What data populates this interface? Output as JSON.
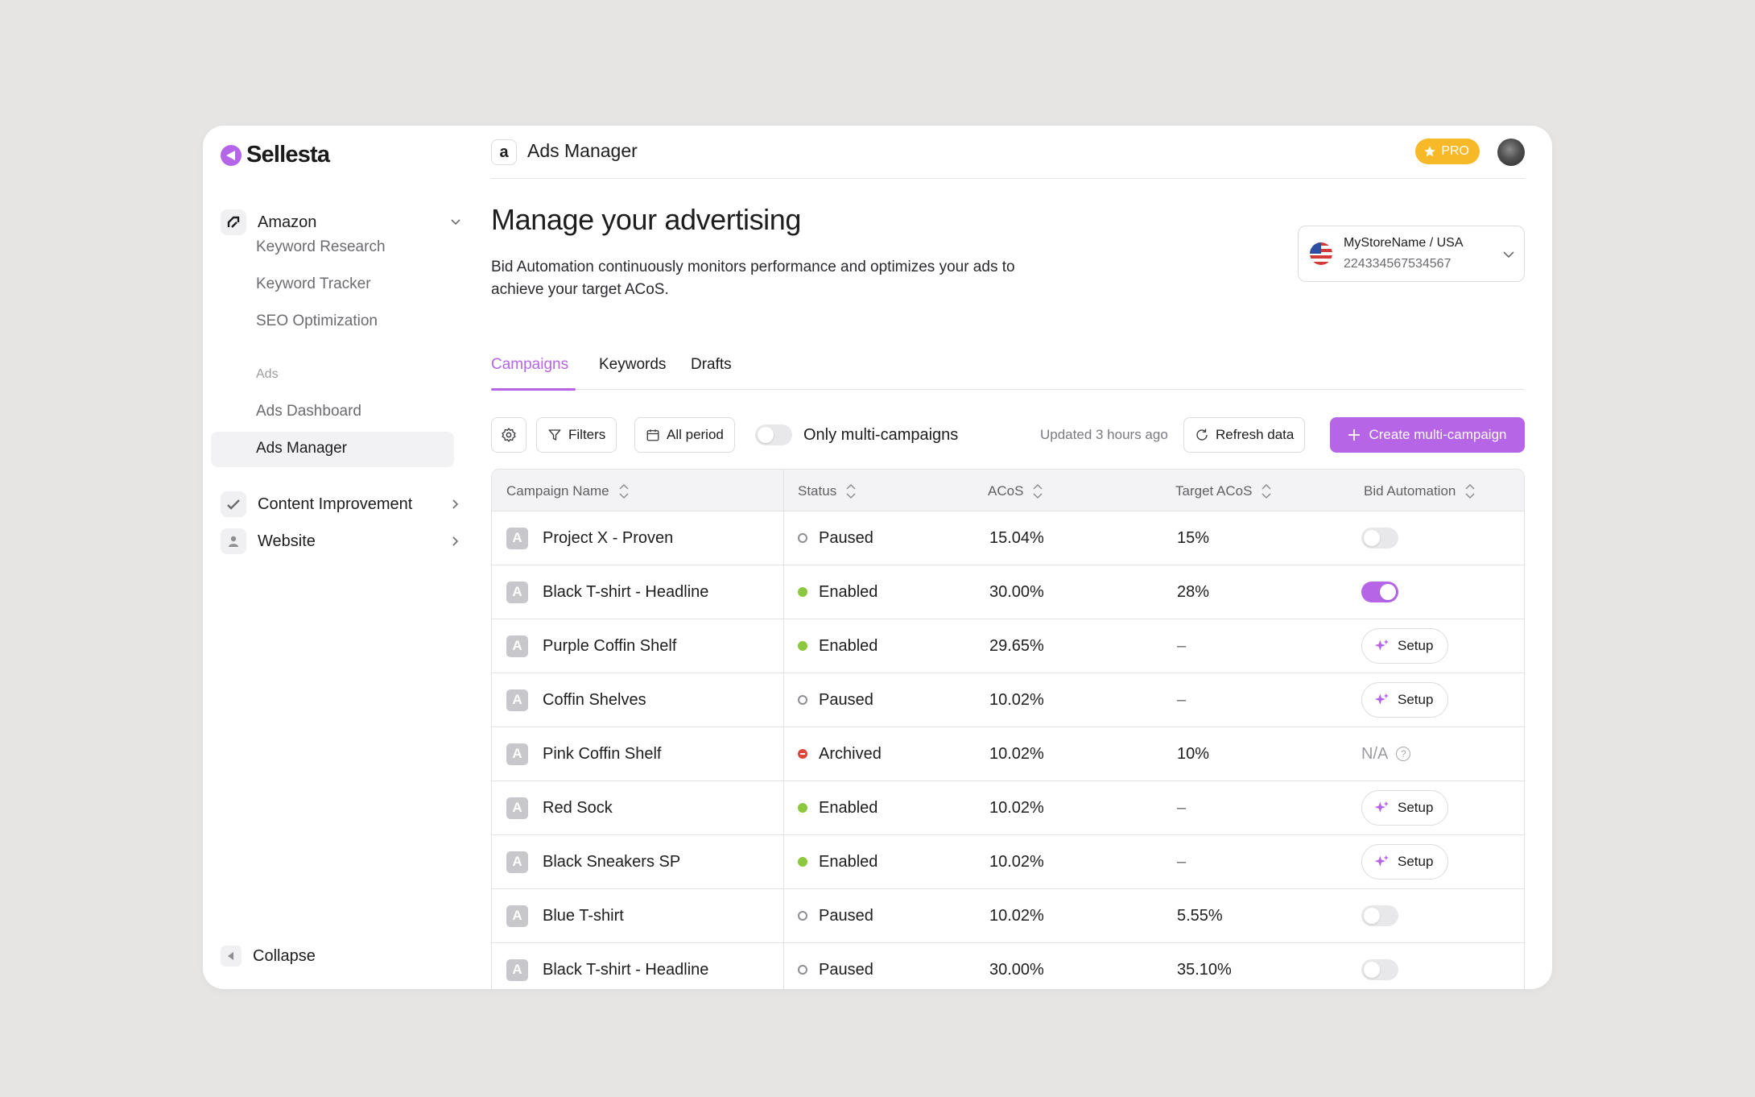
{
  "brand": {
    "name": "Sellesta"
  },
  "sidebar": {
    "groups": [
      {
        "label": "Amazon",
        "items": [
          "Keyword Research",
          "Keyword Tracker",
          "SEO Optimization"
        ]
      },
      {
        "section": "Ads",
        "items": [
          "Ads Dashboard",
          "Ads Manager"
        ]
      },
      {
        "label": "Content Improvement"
      },
      {
        "label": "Website"
      }
    ],
    "collapse_label": "Collapse"
  },
  "header": {
    "title": "Ads Manager",
    "pro_label": "PRO",
    "amazon_glyph": "a"
  },
  "page": {
    "title": "Manage your advertising",
    "description": "Bid Automation continuously monitors performance and optimizes your ads to achieve your target ACoS."
  },
  "store": {
    "name": "MyStoreName",
    "region": "/ USA",
    "id": "224334567534567"
  },
  "tabs": [
    "Campaigns",
    "Keywords",
    "Drafts"
  ],
  "toolbar": {
    "filters_label": "Filters",
    "period_label": "All period",
    "toggle_label": "Only multi-campaigns",
    "updated_text": "Updated 3 hours ago",
    "refresh_label": "Refresh data",
    "create_label": "Create multi-campaign"
  },
  "table": {
    "columns": [
      "Campaign Name",
      "Status",
      "ACoS",
      "Target ACoS",
      "Bid Automation"
    ],
    "badge": "A",
    "setup_label": "Setup",
    "na_label": "N/A",
    "rows": [
      {
        "name": "Project X - Proven",
        "status": "Paused",
        "acos": "15.04%",
        "target": "15%",
        "bid": "toggle-off"
      },
      {
        "name": "Black T-shirt - Headline",
        "status": "Enabled",
        "acos": "30.00%",
        "target": "28%",
        "bid": "toggle-on"
      },
      {
        "name": "Purple Coffin Shelf",
        "status": "Enabled",
        "acos": "29.65%",
        "target": "–",
        "bid": "setup"
      },
      {
        "name": "Coffin Shelves",
        "status": "Paused",
        "acos": "10.02%",
        "target": "–",
        "bid": "setup"
      },
      {
        "name": "Pink Coffin Shelf",
        "status": "Archived",
        "acos": "10.02%",
        "target": "10%",
        "bid": "na"
      },
      {
        "name": "Red Sock",
        "status": "Enabled",
        "acos": "10.02%",
        "target": "–",
        "bid": "setup"
      },
      {
        "name": "Black Sneakers SP",
        "status": "Enabled",
        "acos": "10.02%",
        "target": "–",
        "bid": "setup"
      },
      {
        "name": "Blue T-shirt",
        "status": "Paused",
        "acos": "10.02%",
        "target": "5.55%",
        "bid": "toggle-off"
      },
      {
        "name": "Black T-shirt - Headline",
        "status": "Paused",
        "acos": "30.00%",
        "target": "35.10%",
        "bid": "toggle-off"
      }
    ]
  },
  "colors": {
    "accent": "#b565e6",
    "pro": "#f8b928",
    "enabled": "#8dc63f",
    "archived": "#e0453a"
  }
}
